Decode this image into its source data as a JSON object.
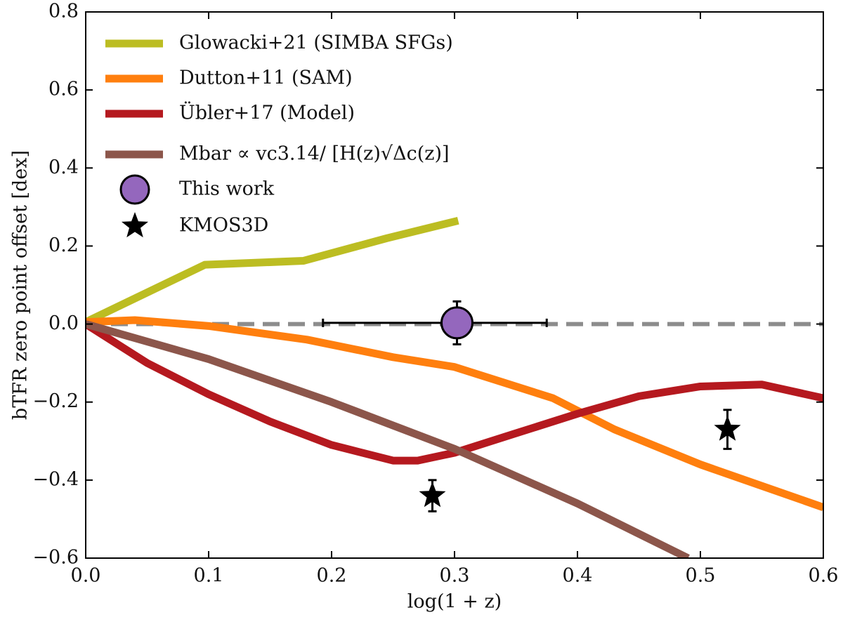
{
  "chart_data": {
    "type": "line",
    "xlabel": "log(1 + z)",
    "ylabel": "bTFR zero point offset [dex]",
    "xlim": [
      0,
      0.6
    ],
    "ylim": [
      -0.6,
      0.8
    ],
    "xticks": [
      {
        "value": 0,
        "label": "0.0"
      },
      {
        "value": 0.1,
        "label": "0.1"
      },
      {
        "value": 0.2,
        "label": "0.2"
      },
      {
        "value": 0.3,
        "label": "0.3"
      },
      {
        "value": 0.4,
        "label": "0.4"
      },
      {
        "value": 0.5,
        "label": "0.5"
      },
      {
        "value": 0.6,
        "label": "0.6"
      }
    ],
    "yticks": [
      {
        "value": -0.6,
        "label": "−0.6"
      },
      {
        "value": -0.4,
        "label": "−0.4"
      },
      {
        "value": -0.2,
        "label": "−0.2"
      },
      {
        "value": 0,
        "label": "0.0"
      },
      {
        "value": 0.2,
        "label": "0.2"
      },
      {
        "value": 0.4,
        "label": "0.4"
      },
      {
        "value": 0.6,
        "label": "0.6"
      },
      {
        "value": 0.8,
        "label": "0.8"
      }
    ],
    "hline": {
      "y": 0,
      "color": "#8c8c8c"
    },
    "legend": "upper left",
    "series": [
      {
        "name": "Glowacki+21 (SIMBA SFGs)",
        "color": "#bcbd22",
        "x": [
          0,
          0.097,
          0.177,
          0.245,
          0.303
        ],
        "values": [
          0.005,
          0.152,
          0.162,
          0.22,
          0.265
        ]
      },
      {
        "name": "Dutton+11 (SAM)",
        "color": "#ff7f0e",
        "x": [
          0,
          0.04,
          0.1,
          0.18,
          0.25,
          0.3,
          0.38,
          0.43,
          0.5,
          0.6
        ],
        "values": [
          0.005,
          0.01,
          -0.005,
          -0.04,
          -0.085,
          -0.11,
          -0.19,
          -0.27,
          -0.36,
          -0.47
        ]
      },
      {
        "name": "Übler+17 (Model)",
        "color": "#b5191f",
        "x": [
          0,
          0.05,
          0.1,
          0.15,
          0.2,
          0.25,
          0.27,
          0.3,
          0.35,
          0.4,
          0.45,
          0.5,
          0.55,
          0.6
        ],
        "values": [
          0,
          -0.1,
          -0.18,
          -0.25,
          -0.31,
          -0.35,
          -0.35,
          -0.33,
          -0.28,
          -0.23,
          -0.185,
          -0.16,
          -0.155,
          -0.19
        ]
      },
      {
        "name": "Mbar ∝ vc3.14/ [H(z)√Δc(z)]",
        "color": "#8c564b",
        "x": [
          0,
          0.1,
          0.2,
          0.3,
          0.4,
          0.49
        ],
        "values": [
          0,
          -0.09,
          -0.2,
          -0.32,
          -0.46,
          -0.6
        ]
      }
    ],
    "points": [
      {
        "name": "This work",
        "marker": "circle",
        "color": "#9467bd",
        "x": [
          0.302
        ],
        "values": [
          0.003
        ],
        "xerr_minus": [
          0.109
        ],
        "xerr_plus": [
          0.073
        ],
        "yerr": [
          0.055
        ]
      },
      {
        "name": "KMOS3D",
        "marker": "star",
        "color": "#000000",
        "x": [
          0.282,
          0.522
        ],
        "values": [
          -0.44,
          -0.27
        ],
        "yerr": [
          0.04,
          0.05
        ]
      }
    ]
  }
}
